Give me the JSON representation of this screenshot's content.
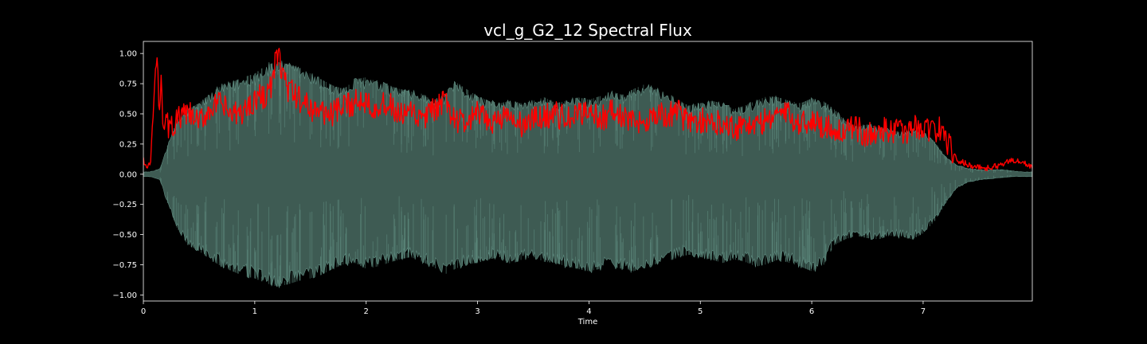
{
  "chart_data": {
    "type": "area",
    "title": "vcl_g_G2_12 Spectral Flux",
    "xlabel": "Time",
    "ylabel": "",
    "xlim": [
      0,
      7.98
    ],
    "ylim": [
      -1.05,
      1.1
    ],
    "xticks": [
      0,
      1,
      2,
      3,
      4,
      5,
      6,
      7
    ],
    "xtick_labels": [
      "0",
      "1",
      "2",
      "3",
      "4",
      "5",
      "6",
      "7"
    ],
    "yticks": [
      1.0,
      0.75,
      0.5,
      0.25,
      0.0,
      -0.25,
      -0.5,
      -0.75,
      -1.0
    ],
    "ytick_labels": [
      "1.00",
      "0.75",
      "0.50",
      "0.25",
      "0.00",
      "−0.25",
      "−0.50",
      "−0.75",
      "−1.00"
    ],
    "grid": false,
    "background": "#000000",
    "axes_color": "#ffffff",
    "series": [
      {
        "kind": "waveform",
        "color": "#3e5b53",
        "edge_color": "#5f8c80",
        "x": [
          0,
          0.05,
          0.1,
          0.15,
          0.2,
          0.3,
          0.4,
          0.5,
          0.6,
          0.7,
          0.8,
          0.9,
          1.0,
          1.1,
          1.2,
          1.3,
          1.4,
          1.5,
          1.6,
          1.7,
          1.8,
          1.9,
          2.0,
          2.1,
          2.2,
          2.3,
          2.4,
          2.5,
          2.6,
          2.7,
          2.8,
          2.9,
          3.0,
          3.1,
          3.2,
          3.3,
          3.4,
          3.5,
          3.6,
          3.7,
          3.8,
          3.9,
          4.0,
          4.1,
          4.2,
          4.3,
          4.4,
          4.5,
          4.6,
          4.7,
          4.8,
          4.9,
          5.0,
          5.1,
          5.2,
          5.3,
          5.4,
          5.5,
          5.6,
          5.7,
          5.8,
          5.9,
          6.0,
          6.1,
          6.2,
          6.3,
          6.4,
          6.5,
          6.6,
          6.7,
          6.8,
          6.9,
          7.0,
          7.1,
          7.2,
          7.3,
          7.4,
          7.5,
          7.6,
          7.7,
          7.8,
          7.9,
          7.98
        ],
        "upper": [
          0.02,
          0.02,
          0.03,
          0.05,
          0.2,
          0.45,
          0.55,
          0.6,
          0.68,
          0.75,
          0.78,
          0.82,
          0.85,
          0.92,
          0.95,
          0.93,
          0.9,
          0.85,
          0.8,
          0.75,
          0.72,
          0.8,
          0.82,
          0.78,
          0.75,
          0.72,
          0.7,
          0.68,
          0.62,
          0.66,
          0.78,
          0.72,
          0.66,
          0.62,
          0.6,
          0.62,
          0.6,
          0.62,
          0.65,
          0.6,
          0.62,
          0.65,
          0.63,
          0.66,
          0.7,
          0.67,
          0.72,
          0.76,
          0.72,
          0.7,
          0.62,
          0.58,
          0.6,
          0.62,
          0.6,
          0.55,
          0.58,
          0.62,
          0.66,
          0.65,
          0.62,
          0.6,
          0.64,
          0.62,
          0.55,
          0.45,
          0.4,
          0.42,
          0.4,
          0.38,
          0.35,
          0.38,
          0.36,
          0.28,
          0.15,
          0.08,
          0.05,
          0.04,
          0.04,
          0.04,
          0.03,
          0.02,
          0.02
        ],
        "lower": [
          -0.02,
          -0.02,
          -0.03,
          -0.05,
          -0.2,
          -0.45,
          -0.6,
          -0.65,
          -0.72,
          -0.78,
          -0.82,
          -0.86,
          -0.88,
          -0.92,
          -0.95,
          -0.93,
          -0.9,
          -0.88,
          -0.85,
          -0.8,
          -0.76,
          -0.75,
          -0.8,
          -0.78,
          -0.75,
          -0.72,
          -0.7,
          -0.74,
          -0.78,
          -0.85,
          -0.8,
          -0.76,
          -0.75,
          -0.72,
          -0.7,
          -0.76,
          -0.72,
          -0.7,
          -0.74,
          -0.75,
          -0.78,
          -0.8,
          -0.82,
          -0.8,
          -0.78,
          -0.8,
          -0.82,
          -0.78,
          -0.76,
          -0.74,
          -0.7,
          -0.68,
          -0.7,
          -0.72,
          -0.75,
          -0.72,
          -0.74,
          -0.78,
          -0.76,
          -0.72,
          -0.75,
          -0.78,
          -0.82,
          -0.78,
          -0.6,
          -0.55,
          -0.52,
          -0.54,
          -0.55,
          -0.52,
          -0.53,
          -0.55,
          -0.5,
          -0.4,
          -0.25,
          -0.12,
          -0.07,
          -0.05,
          -0.04,
          -0.03,
          -0.02,
          -0.02,
          -0.02
        ]
      },
      {
        "kind": "line",
        "color": "#ff0000",
        "x": [
          0,
          0.03,
          0.06,
          0.08,
          0.1,
          0.12,
          0.14,
          0.16,
          0.18,
          0.2,
          0.25,
          0.3,
          0.4,
          0.5,
          0.6,
          0.7,
          0.8,
          0.9,
          1.0,
          1.1,
          1.15,
          1.2,
          1.3,
          1.4,
          1.5,
          1.6,
          1.7,
          1.8,
          1.9,
          2.0,
          2.1,
          2.2,
          2.3,
          2.4,
          2.5,
          2.6,
          2.7,
          2.8,
          2.9,
          3.0,
          3.1,
          3.2,
          3.3,
          3.4,
          3.5,
          3.6,
          3.7,
          3.8,
          3.9,
          4.0,
          4.1,
          4.2,
          4.3,
          4.4,
          4.5,
          4.6,
          4.7,
          4.8,
          4.9,
          5.0,
          5.1,
          5.2,
          5.3,
          5.4,
          5.5,
          5.6,
          5.7,
          5.8,
          5.9,
          6.0,
          6.1,
          6.2,
          6.3,
          6.4,
          6.5,
          6.6,
          6.7,
          6.8,
          6.9,
          7.0,
          7.1,
          7.15,
          7.2,
          7.3,
          7.4,
          7.5,
          7.6,
          7.7,
          7.8,
          7.9,
          7.98
        ],
        "y": [
          0.12,
          0.05,
          0.08,
          0.35,
          0.72,
          0.97,
          0.55,
          0.82,
          0.4,
          0.42,
          0.38,
          0.45,
          0.5,
          0.42,
          0.55,
          0.58,
          0.48,
          0.52,
          0.62,
          0.66,
          0.72,
          1.0,
          0.7,
          0.62,
          0.55,
          0.52,
          0.5,
          0.55,
          0.6,
          0.62,
          0.55,
          0.58,
          0.48,
          0.5,
          0.45,
          0.52,
          0.6,
          0.45,
          0.42,
          0.5,
          0.42,
          0.48,
          0.45,
          0.4,
          0.45,
          0.48,
          0.5,
          0.45,
          0.48,
          0.55,
          0.45,
          0.52,
          0.48,
          0.42,
          0.45,
          0.5,
          0.48,
          0.52,
          0.42,
          0.45,
          0.4,
          0.45,
          0.38,
          0.42,
          0.4,
          0.45,
          0.52,
          0.48,
          0.42,
          0.45,
          0.4,
          0.38,
          0.35,
          0.38,
          0.32,
          0.35,
          0.38,
          0.34,
          0.38,
          0.4,
          0.35,
          0.38,
          0.3,
          0.12,
          0.08,
          0.06,
          0.05,
          0.08,
          0.12,
          0.1,
          0.05
        ]
      }
    ]
  }
}
